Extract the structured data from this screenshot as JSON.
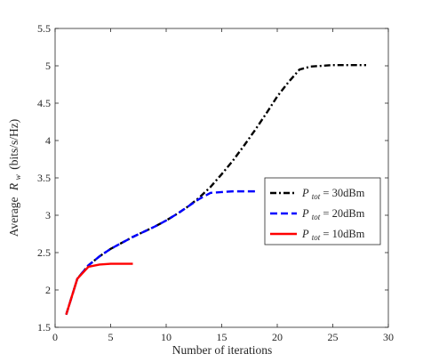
{
  "chart_data": {
    "type": "line",
    "title": "",
    "xlabel": "Number of iterations",
    "ylabel": "Average R_w (bits/s/Hz)",
    "ylabel_main": "Average",
    "ylabel_var": "R",
    "ylabel_sub": "w",
    "ylabel_unit": "(bits/s/Hz)",
    "xlim": [
      0,
      30
    ],
    "ylim": [
      1.5,
      5.5
    ],
    "xticks": [
      0,
      5,
      10,
      15,
      20,
      25,
      30
    ],
    "yticks": [
      1.5,
      2,
      2.5,
      3,
      3.5,
      4,
      4.5,
      5,
      5.5
    ],
    "grid": false,
    "legend_position": "center-right",
    "series": [
      {
        "name": "P_tot = 30dBm",
        "legend_var": "P",
        "legend_sub": "tot",
        "legend_rest": " = 30dBm",
        "color": "#000000",
        "dash": "dashdot",
        "x": [
          1,
          2,
          3,
          4,
          5,
          6,
          7,
          8,
          9,
          10,
          11,
          12,
          13,
          14,
          15,
          16,
          17,
          18,
          19,
          20,
          21,
          22,
          23,
          24,
          25,
          26,
          27,
          28
        ],
        "y": [
          1.67,
          2.15,
          2.33,
          2.45,
          2.55,
          2.63,
          2.71,
          2.78,
          2.85,
          2.93,
          3.02,
          3.12,
          3.24,
          3.38,
          3.55,
          3.73,
          3.93,
          4.14,
          4.36,
          4.59,
          4.78,
          4.95,
          4.99,
          5.0,
          5.01,
          5.01,
          5.01,
          5.01
        ]
      },
      {
        "name": "P_tot = 20dBm",
        "legend_var": "P",
        "legend_sub": "tot",
        "legend_rest": " = 20dBm",
        "color": "#0000ff",
        "dash": "dashed",
        "x": [
          1,
          2,
          3,
          4,
          5,
          6,
          7,
          8,
          9,
          10,
          11,
          12,
          13,
          14,
          15,
          16,
          17,
          18
        ],
        "y": [
          1.67,
          2.15,
          2.33,
          2.45,
          2.55,
          2.63,
          2.71,
          2.78,
          2.85,
          2.93,
          3.02,
          3.12,
          3.22,
          3.3,
          3.31,
          3.32,
          3.32,
          3.32
        ]
      },
      {
        "name": "P_tot = 10dBm",
        "legend_var": "P",
        "legend_sub": "tot",
        "legend_rest": " = 10dBm",
        "color": "#ff0000",
        "dash": "solid",
        "x": [
          1,
          2,
          3,
          4,
          5,
          6,
          7
        ],
        "y": [
          1.67,
          2.15,
          2.31,
          2.34,
          2.35,
          2.35,
          2.35
        ]
      }
    ]
  }
}
